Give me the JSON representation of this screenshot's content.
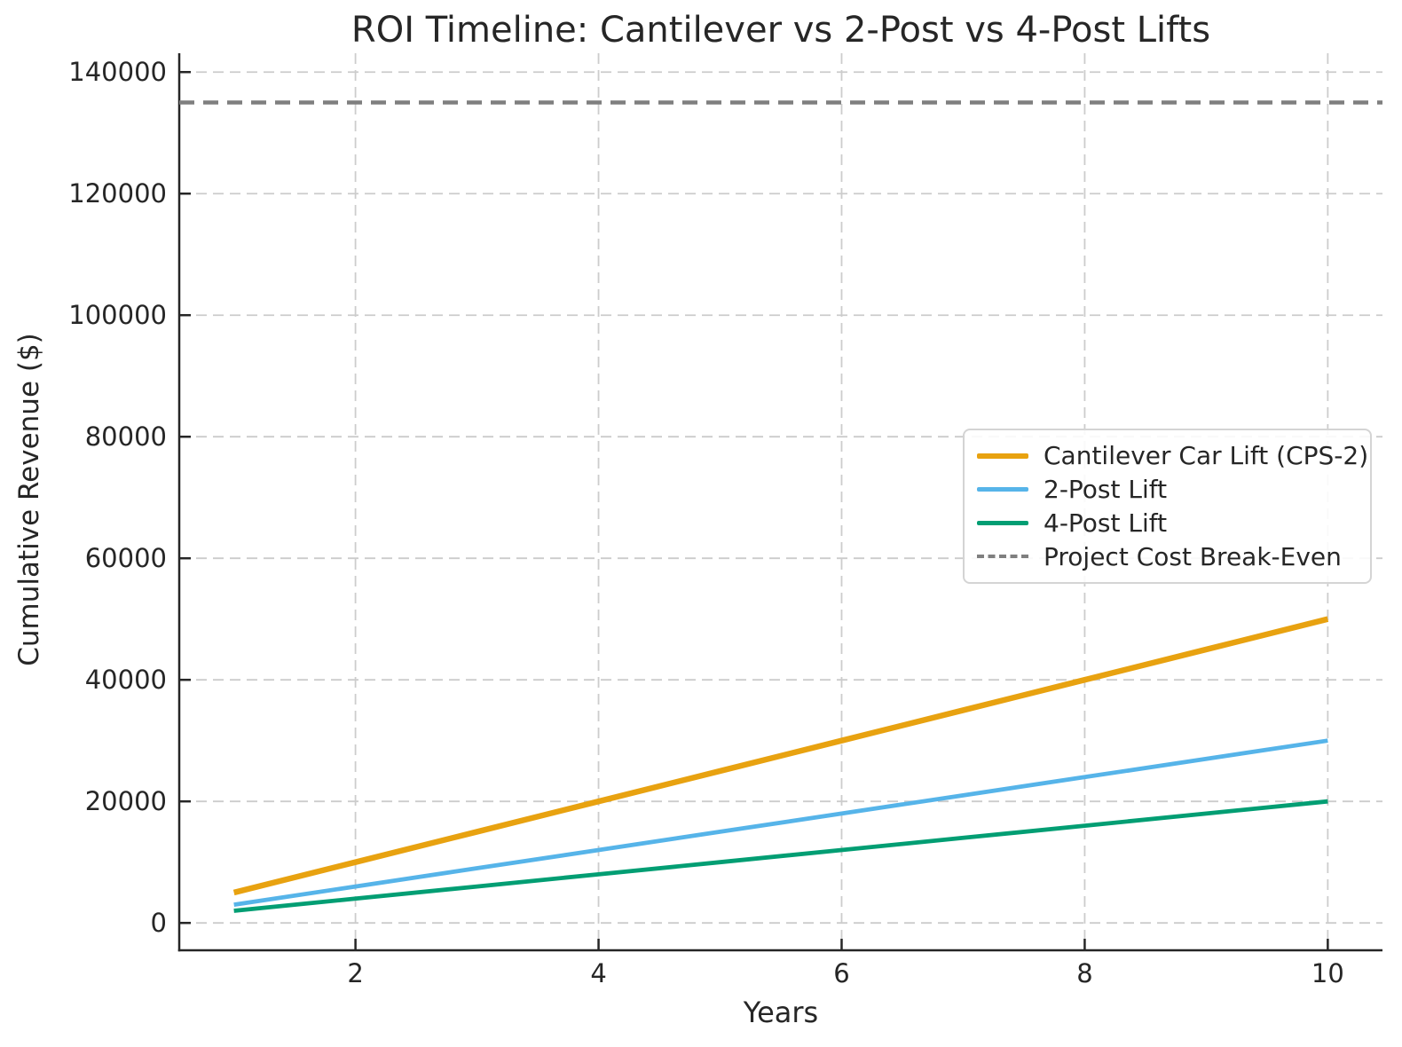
{
  "figure": {
    "background": "#ffffff",
    "text_color": "#262626",
    "grid_color": "#cccccc",
    "spine_color": "#262626"
  },
  "chart_data": {
    "type": "line",
    "title": "ROI Timeline: Cantilever vs 2-Post vs 4-Post Lifts",
    "xlabel": "Years",
    "ylabel": "Cumulative Revenue ($)",
    "x": [
      1,
      2,
      3,
      4,
      5,
      6,
      7,
      8,
      9,
      10
    ],
    "series": [
      {
        "name": "Cantilever Car Lift (CPS-2)",
        "color": "#E8A210",
        "width": 6.5,
        "values": [
          5000,
          10000,
          15000,
          20000,
          25000,
          30000,
          35000,
          40000,
          45000,
          50000
        ]
      },
      {
        "name": "2-Post Lift",
        "color": "#56B4E9",
        "width": 4.8,
        "values": [
          3000,
          6000,
          9000,
          12000,
          15000,
          18000,
          21000,
          24000,
          27000,
          30000
        ]
      },
      {
        "name": "4-Post Lift",
        "color": "#029E73",
        "width": 4.8,
        "values": [
          2000,
          4000,
          6000,
          8000,
          10000,
          12000,
          14000,
          16000,
          18000,
          20000
        ]
      }
    ],
    "reference_line": {
      "name": "Project Cost Break-Even",
      "value": 135000,
      "color": "#7f7f7f",
      "style": "dashed",
      "width": 4.5
    },
    "xticks": [
      2,
      4,
      6,
      8,
      10
    ],
    "yticks": [
      0,
      20000,
      40000,
      60000,
      80000,
      100000,
      120000,
      140000
    ],
    "xlim": [
      0.55,
      10.45
    ],
    "ylim": [
      -4500,
      143100
    ],
    "grid": true,
    "grid_style": "dashed",
    "legend_position": "center-right"
  }
}
